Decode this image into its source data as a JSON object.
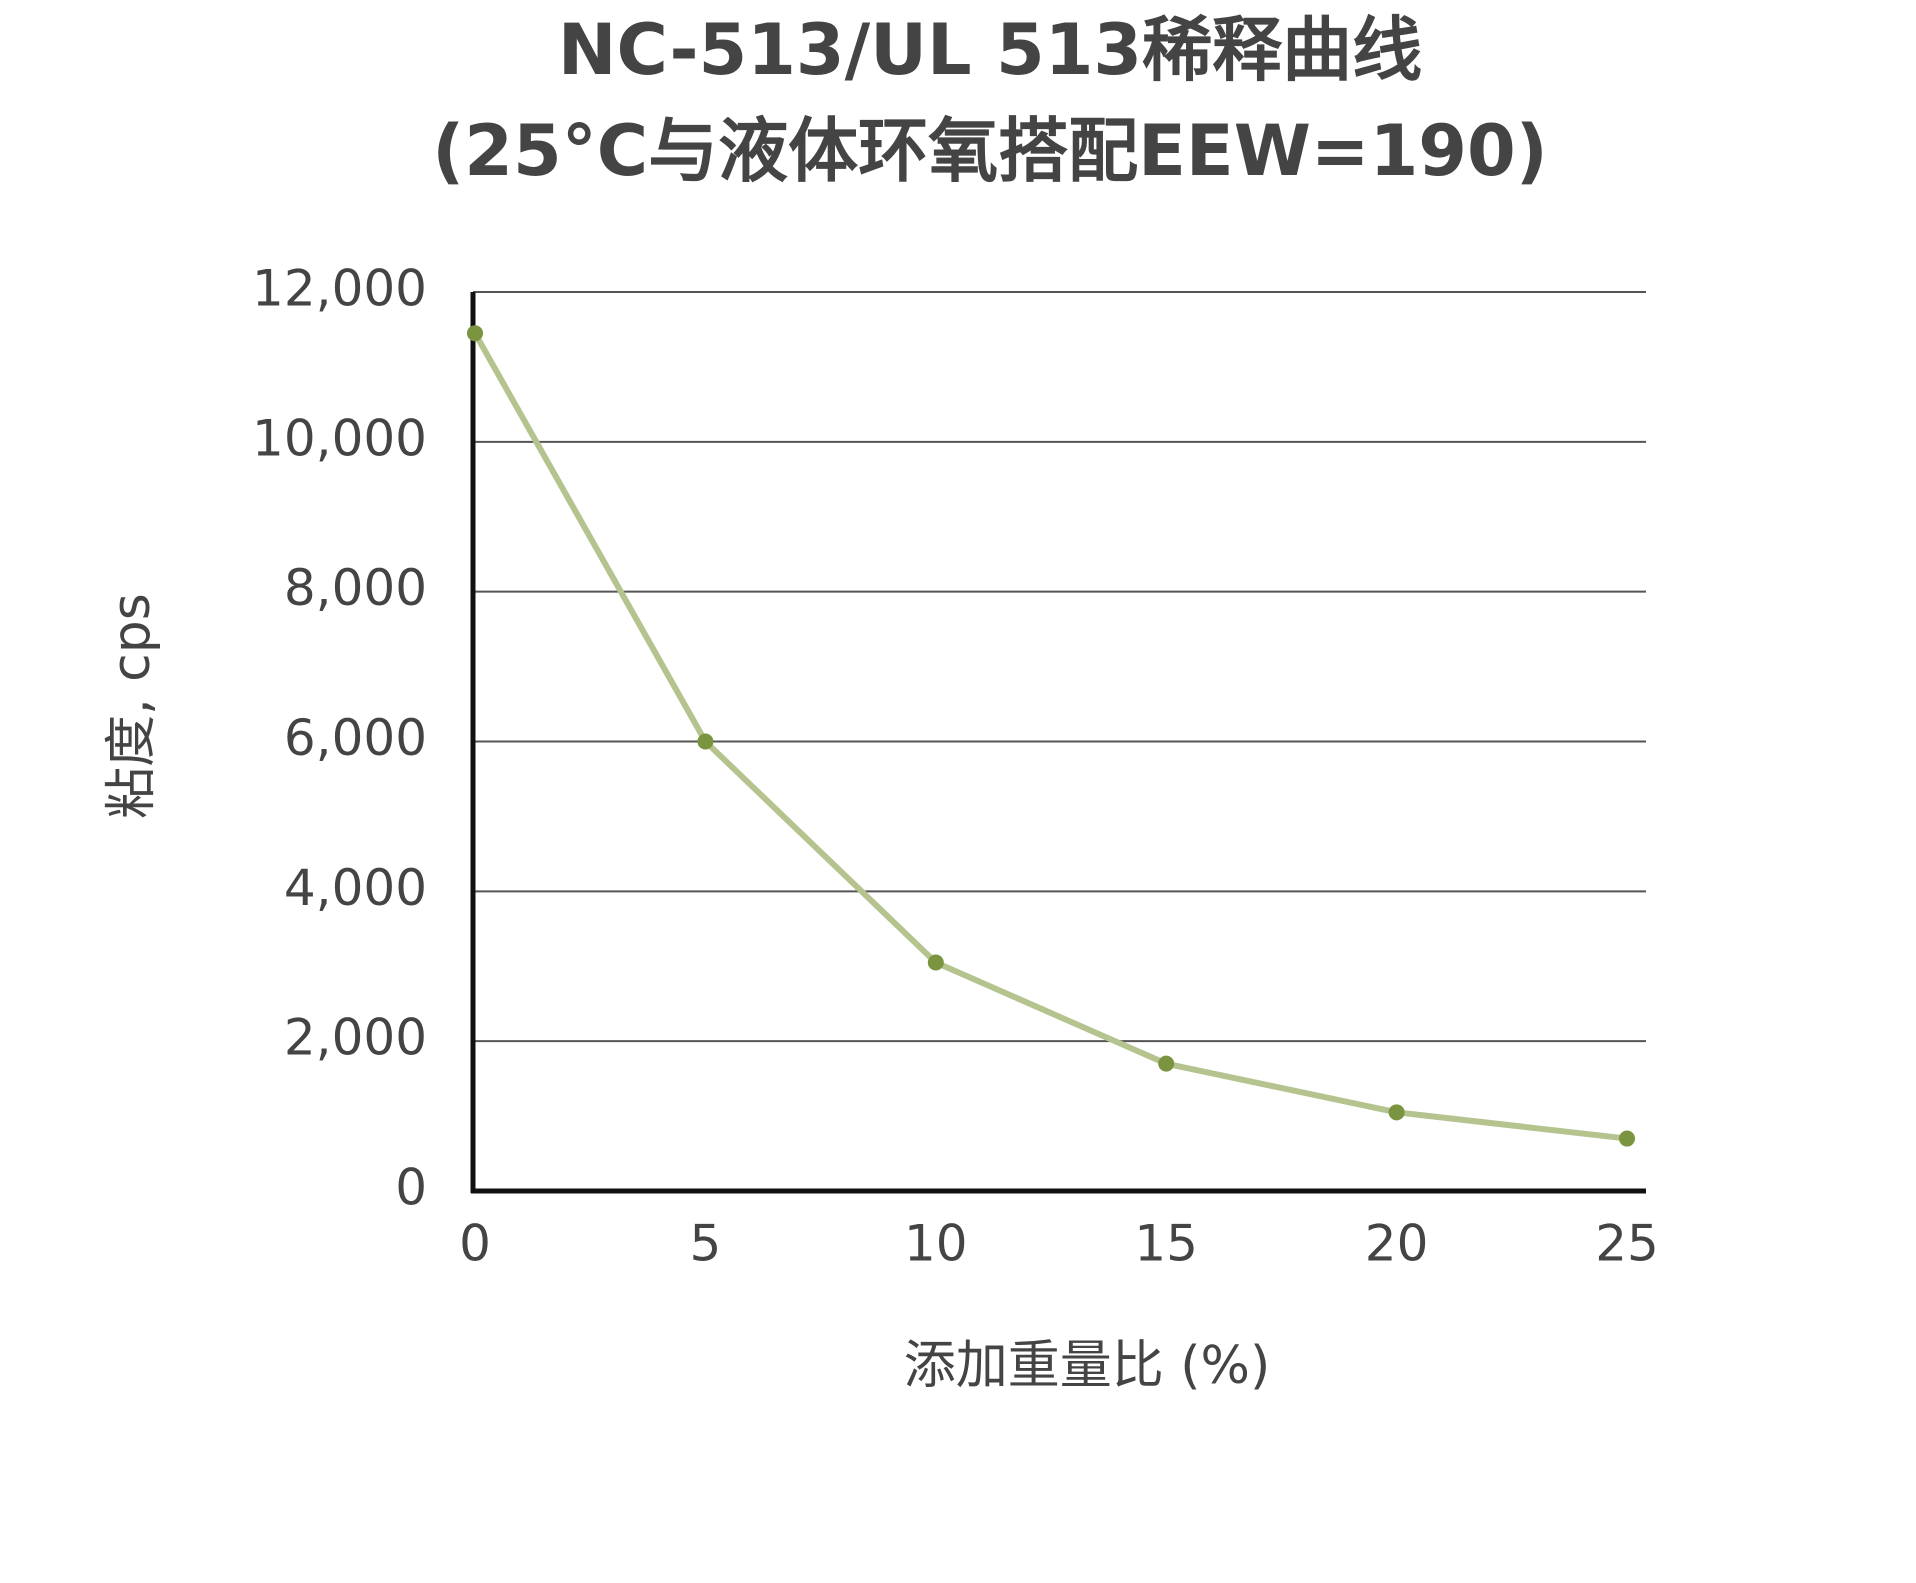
{
  "chart_data": {
    "type": "line",
    "title": "NC-513/UL 513稀释曲线",
    "subtitle": "(25°C与液体环氧搭配EEW=190)",
    "x_label": "添加重量比 (%)",
    "y_label": "粘度, cps",
    "x": [
      0,
      5,
      10,
      15,
      20,
      25
    ],
    "series": [
      {
        "name": "NC-513/UL 513",
        "color": "#b5c48f",
        "marker_color": "#7a9440",
        "values": [
          11450,
          6000,
          3050,
          1700,
          1050,
          700
        ]
      }
    ],
    "xlim": [
      0,
      25
    ],
    "xticks": [
      0,
      5,
      10,
      15,
      20,
      25
    ],
    "ylim": [
      0,
      12000
    ],
    "yticks": [
      0,
      {
        "value": 2000,
        "label": "2,000"
      },
      {
        "value": 4000,
        "label": "4,000"
      },
      {
        "value": 6000,
        "label": "6,000"
      },
      {
        "value": 8000,
        "label": "8,000"
      },
      {
        "value": 10000,
        "label": "10,000"
      },
      {
        "value": 12000,
        "label": "12,000"
      }
    ],
    "grid": true
  }
}
